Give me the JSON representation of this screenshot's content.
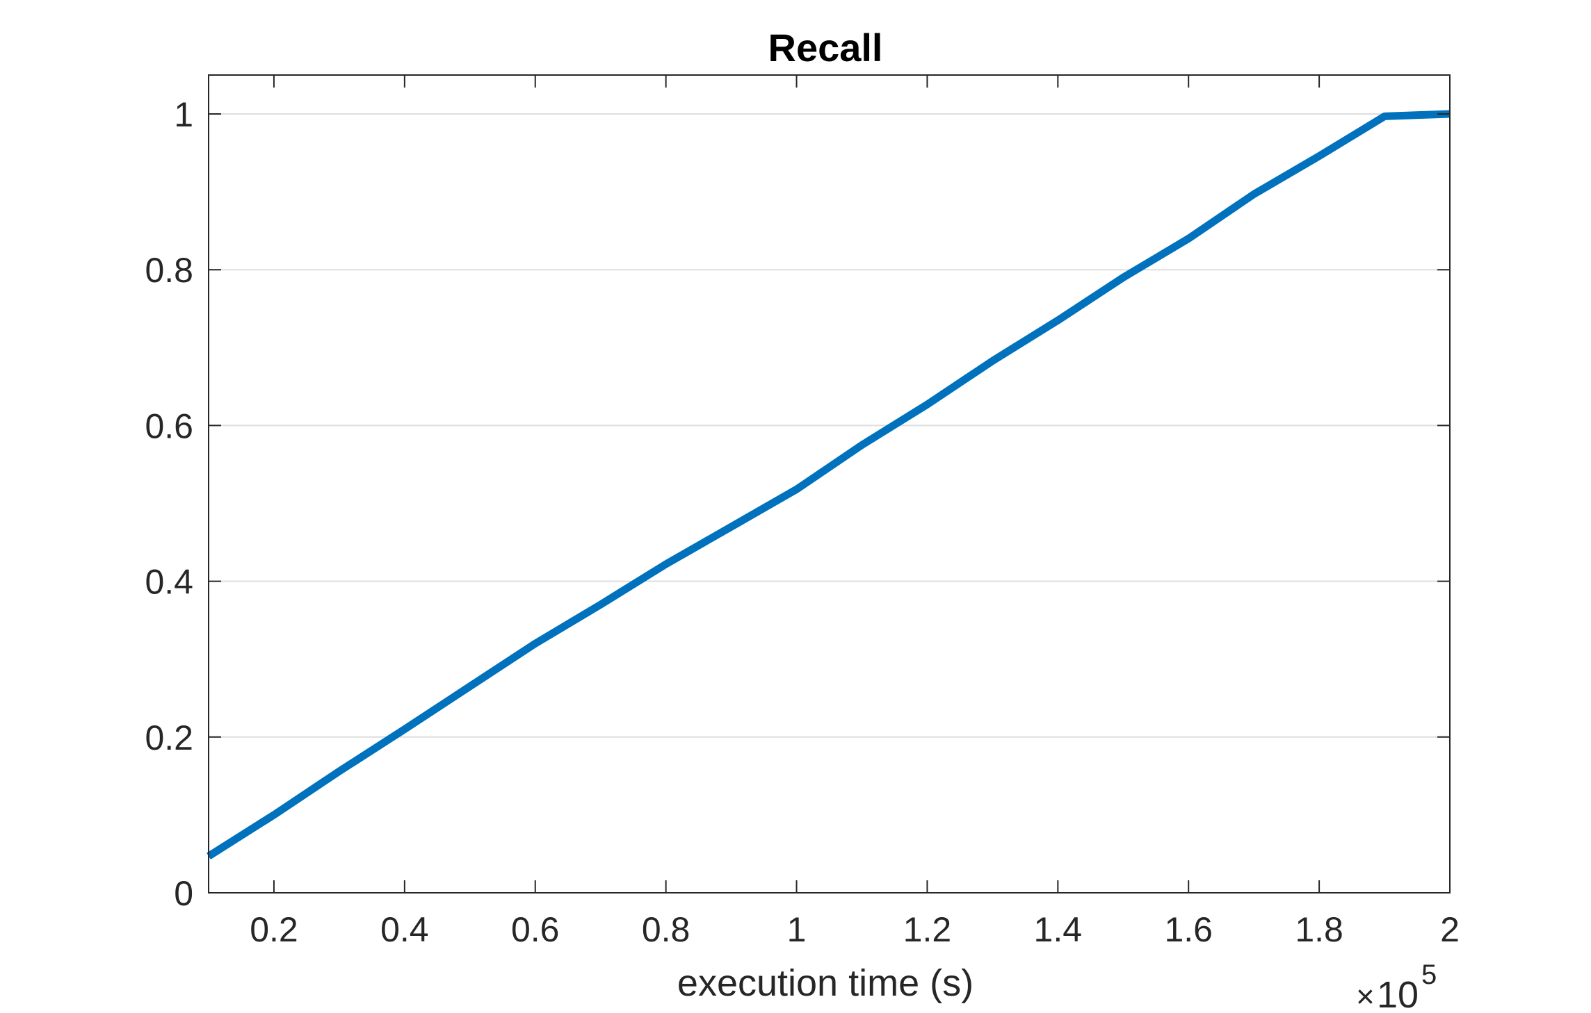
{
  "chart_data": {
    "type": "line",
    "title": "Recall",
    "xlabel": "execution time (s)",
    "ylabel": "",
    "x_exponent": {
      "times": "×",
      "base": "10",
      "power": "5"
    },
    "xlim": [
      0.1,
      2.0
    ],
    "ylim": [
      0,
      1.05
    ],
    "x_ticks": [
      0.2,
      0.4,
      0.6,
      0.8,
      1.0,
      1.2,
      1.4,
      1.6,
      1.8,
      2.0
    ],
    "x_tick_labels": [
      "0.2",
      "0.4",
      "0.6",
      "0.8",
      "1",
      "1.2",
      "1.4",
      "1.6",
      "1.8",
      "2"
    ],
    "y_ticks": [
      0,
      0.2,
      0.4,
      0.6,
      0.8,
      1.0
    ],
    "y_tick_labels": [
      "0",
      "0.2",
      "0.4",
      "0.6",
      "0.8",
      "1"
    ],
    "grid": "horizontal",
    "series": [
      {
        "color": "#0072BD",
        "x": [
          0.1,
          0.2,
          0.3,
          0.4,
          0.5,
          0.6,
          0.7,
          0.8,
          0.9,
          1.0,
          1.1,
          1.2,
          1.3,
          1.4,
          1.5,
          1.6,
          1.7,
          1.8,
          1.9,
          2.0
        ],
        "y": [
          0.047,
          0.1,
          0.156,
          0.21,
          0.265,
          0.32,
          0.37,
          0.422,
          0.47,
          0.518,
          0.575,
          0.627,
          0.683,
          0.735,
          0.79,
          0.84,
          0.897,
          0.946,
          0.997,
          1.0
        ]
      }
    ]
  }
}
